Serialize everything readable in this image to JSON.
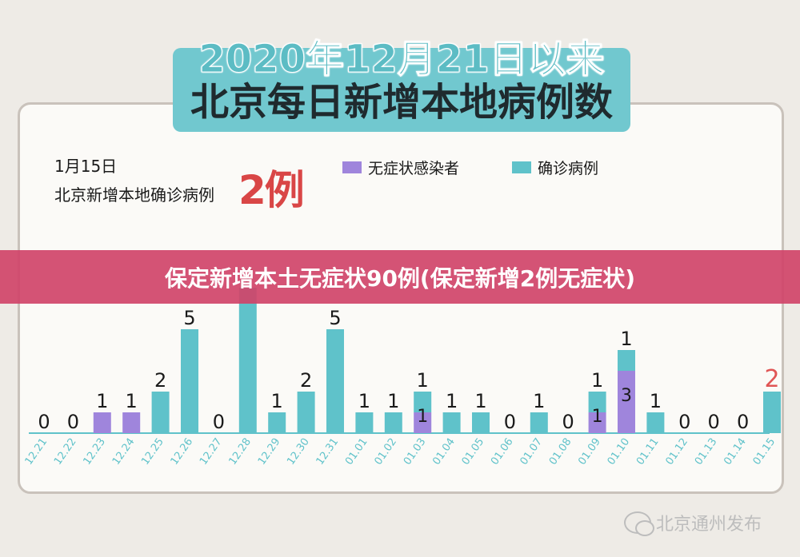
{
  "headline": {
    "line1": "2020年12月21日以来",
    "line2": "北京每日新增本地病例数"
  },
  "summary": {
    "date": "1月15日",
    "label": "北京新增本地确诊病例",
    "value": "2例"
  },
  "banner_text": "保定新增本土无症状90例(保定新增2例无症状)",
  "watermark": "北京通州发布",
  "colors": {
    "asymptomatic": "#9f85dc",
    "confirmed": "#5fc2ca",
    "highlight": "#e05555",
    "axis": "#5fc2ca"
  },
  "chart_data": {
    "type": "bar",
    "stacked": true,
    "legend": [
      "无症状感染者",
      "确诊病例"
    ],
    "categories": [
      "12.21",
      "12.22",
      "12.23",
      "12.24",
      "12.25",
      "12.26",
      "12.27",
      "12.28",
      "12.29",
      "12.30",
      "12.31",
      "01.01",
      "01.02",
      "01.03",
      "01.04",
      "01.05",
      "01.06",
      "01.07",
      "01.08",
      "01.09",
      "01.10",
      "01.11",
      "01.12",
      "01.13",
      "01.14",
      "01.15"
    ],
    "series": [
      {
        "name": "无症状感染者",
        "values": [
          0,
          0,
          1,
          1,
          0,
          0,
          0,
          0,
          0,
          0,
          0,
          0,
          0,
          1,
          0,
          0,
          0,
          0,
          0,
          1,
          3,
          0,
          0,
          0,
          0,
          0
        ]
      },
      {
        "name": "确诊病例",
        "values": [
          0,
          0,
          0,
          0,
          2,
          5,
          0,
          7,
          1,
          2,
          5,
          1,
          1,
          1,
          1,
          1,
          0,
          1,
          0,
          1,
          1,
          1,
          0,
          0,
          0,
          2
        ]
      }
    ]
  }
}
